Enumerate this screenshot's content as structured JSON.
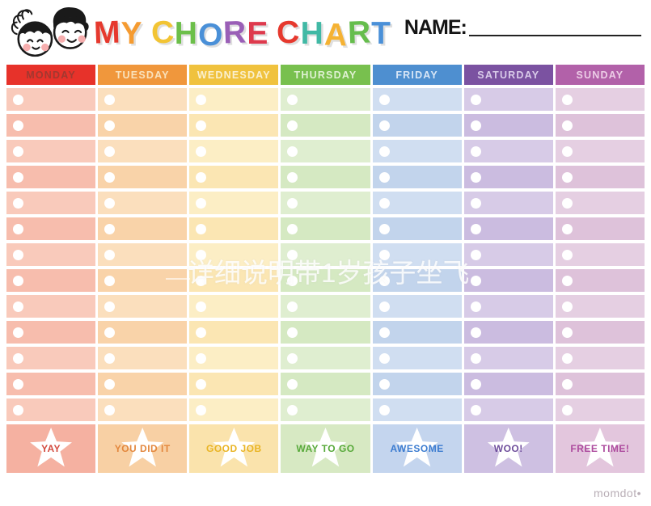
{
  "header": {
    "name_label": "NAME:",
    "title_letters": [
      {
        "ch": "M",
        "color": "#e6392e"
      },
      {
        "ch": "Y",
        "color": "#f59b31"
      },
      {
        "ch": " "
      },
      {
        "ch": "C",
        "color": "#f2c434"
      },
      {
        "ch": "H",
        "color": "#6cbf4a"
      },
      {
        "ch": "O",
        "color": "#4a90d8"
      },
      {
        "ch": "R",
        "color": "#9a5fb7"
      },
      {
        "ch": "E",
        "color": "#de3a4d"
      },
      {
        "ch": " "
      },
      {
        "ch": "C",
        "color": "#e6392e"
      },
      {
        "ch": "H",
        "color": "#41b9a5"
      },
      {
        "ch": "A",
        "color": "#f5b233"
      },
      {
        "ch": "R",
        "color": "#66bd4d"
      },
      {
        "ch": "T",
        "color": "#4a90d8"
      }
    ]
  },
  "grid": {
    "rows_per_day": 13,
    "days": [
      {
        "label": "MONDAY",
        "header_bg": "#e7322a",
        "header_text_color": "#a23830",
        "cell_bg": "#f9cabb",
        "cell_bg_alt": "#f7bdad",
        "footer_bg": "#f5b1a1",
        "footer_label": "YAY",
        "footer_text_color": "#d34a3e"
      },
      {
        "label": "TUESDAY",
        "header_bg": "#f0973c",
        "header_text_color": "#f9e2bd",
        "cell_bg": "#fbdfbd",
        "cell_bg_alt": "#f9d3a9",
        "footer_bg": "#f8d0a4",
        "footer_label": "YOU DID IT",
        "footer_text_color": "#e3873d"
      },
      {
        "label": "WEDNESDAY",
        "header_bg": "#f0c23e",
        "header_text_color": "#faf0d0",
        "cell_bg": "#fceec5",
        "cell_bg_alt": "#fbe6b3",
        "footer_bg": "#fae3ac",
        "footer_label": "GOOD JOB",
        "footer_text_color": "#e9b424"
      },
      {
        "label": "THURSDAY",
        "header_bg": "#78c04e",
        "header_text_color": "#e0f1d3",
        "cell_bg": "#dfeed0",
        "cell_bg_alt": "#d5e9c2",
        "footer_bg": "#d7e9c3",
        "footer_label": "WAY TO GO",
        "footer_text_color": "#57a93a"
      },
      {
        "label": "FRIDAY",
        "header_bg": "#4e8fd0",
        "header_text_color": "#d8e6f6",
        "cell_bg": "#d0def1",
        "cell_bg_alt": "#c2d4ec",
        "footer_bg": "#c4d5ee",
        "footer_label": "AWESOME",
        "footer_text_color": "#3c7cd0"
      },
      {
        "label": "SATURDAY",
        "header_bg": "#7b52a1",
        "header_text_color": "#d9cbe9",
        "cell_bg": "#d7cbe7",
        "cell_bg_alt": "#cbbce0",
        "footer_bg": "#cec0e2",
        "footer_label": "WOO!",
        "footer_text_color": "#6e4d9b"
      },
      {
        "label": "SUNDAY",
        "header_bg": "#b261a9",
        "header_text_color": "#eccde6",
        "cell_bg": "#e5cfe2",
        "cell_bg_alt": "#dec2da",
        "footer_bg": "#e3c6dd",
        "footer_label": "FREE TIME!",
        "footer_text_color": "#ad4b9e"
      }
    ]
  },
  "watermark": "详细说明带1岁孩子坐飞",
  "brand": "momdot•"
}
